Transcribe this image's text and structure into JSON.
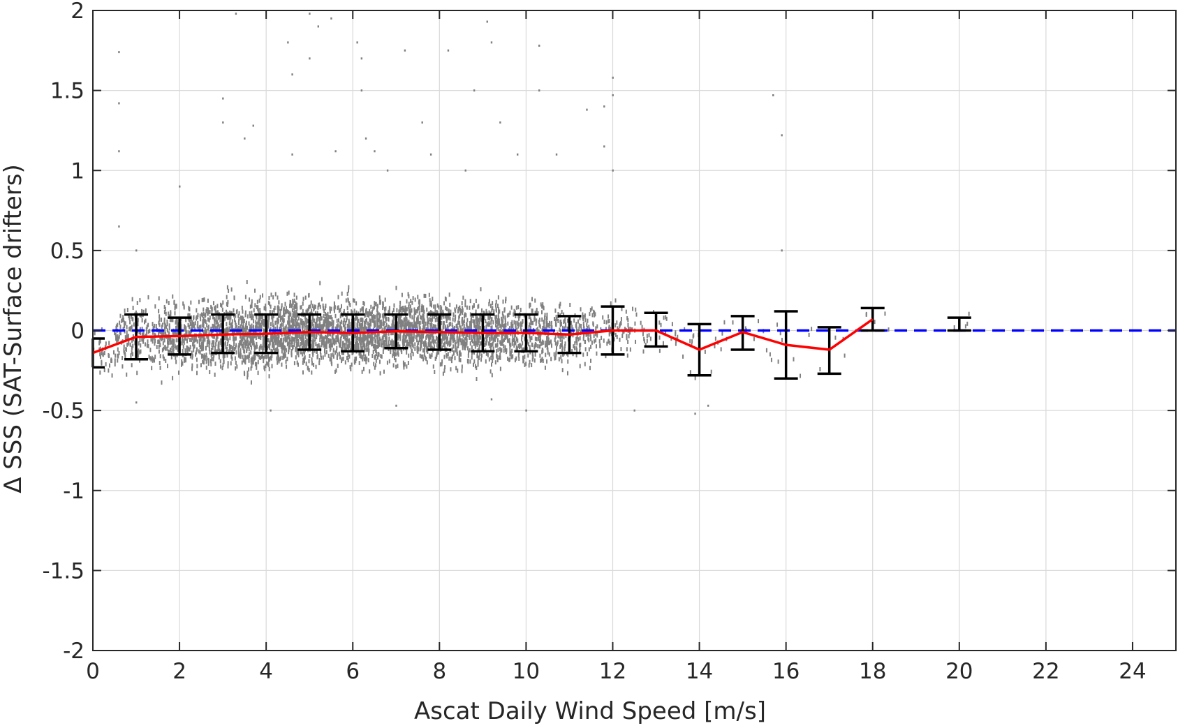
{
  "chart_data": {
    "type": "scatter",
    "xlabel": "Ascat Daily Wind Speed [m/s]",
    "ylabel": "Δ SSS (SAT-Surface drifters)",
    "xlim": [
      0,
      25
    ],
    "ylim": [
      -2,
      2
    ],
    "x_ticks": [
      0,
      2,
      4,
      6,
      8,
      10,
      12,
      14,
      16,
      18,
      20,
      22,
      24
    ],
    "y_ticks": [
      2,
      1.5,
      1,
      0.5,
      0,
      -0.5,
      -1,
      -1.5,
      -2
    ],
    "x_tick_labels": [
      "0",
      "2",
      "4",
      "6",
      "8",
      "10",
      "12",
      "14",
      "16",
      "18",
      "20",
      "22",
      "24"
    ],
    "y_tick_labels": [
      "2",
      "1.5",
      "1",
      "0.5",
      "0",
      "-0.5",
      "-1",
      "-1.5",
      "-2"
    ],
    "grid": true,
    "colors": {
      "scatter": "#808080",
      "mean_line": "#ff0000",
      "error_bars": "#000000",
      "zero_line": "#0000ff",
      "grid": "#d9d9d9",
      "axes": "#262626"
    },
    "zero_reference": {
      "y": 0,
      "style": "dashed"
    },
    "binned_mean": {
      "x": [
        0,
        1,
        2,
        3,
        4,
        5,
        6,
        7,
        8,
        9,
        10,
        11,
        12,
        13,
        14,
        15,
        16,
        17,
        18
      ],
      "y": [
        -0.14,
        -0.04,
        -0.035,
        -0.025,
        -0.02,
        -0.01,
        -0.015,
        -0.005,
        -0.01,
        -0.015,
        -0.015,
        -0.025,
        0.0,
        0.0,
        -0.12,
        -0.01,
        -0.09,
        -0.12,
        0.07
      ]
    },
    "error_bars": [
      {
        "x": 0,
        "mean": -0.14,
        "low": -0.23,
        "high": -0.05
      },
      {
        "x": 1,
        "mean": -0.04,
        "low": -0.18,
        "high": 0.1
      },
      {
        "x": 2,
        "mean": -0.035,
        "low": -0.15,
        "high": 0.08
      },
      {
        "x": 3,
        "mean": -0.025,
        "low": -0.14,
        "high": 0.1
      },
      {
        "x": 4,
        "mean": -0.02,
        "low": -0.14,
        "high": 0.1
      },
      {
        "x": 5,
        "mean": -0.01,
        "low": -0.12,
        "high": 0.1
      },
      {
        "x": 6,
        "mean": -0.015,
        "low": -0.13,
        "high": 0.1
      },
      {
        "x": 7,
        "mean": -0.005,
        "low": -0.11,
        "high": 0.1
      },
      {
        "x": 8,
        "mean": -0.01,
        "low": -0.12,
        "high": 0.1
      },
      {
        "x": 9,
        "mean": -0.015,
        "low": -0.13,
        "high": 0.1
      },
      {
        "x": 10,
        "mean": -0.015,
        "low": -0.13,
        "high": 0.1
      },
      {
        "x": 11,
        "mean": -0.025,
        "low": -0.14,
        "high": 0.09
      },
      {
        "x": 12,
        "mean": 0.0,
        "low": -0.15,
        "high": 0.15
      },
      {
        "x": 13,
        "mean": 0.0,
        "low": -0.1,
        "high": 0.11
      },
      {
        "x": 14,
        "mean": -0.12,
        "low": -0.28,
        "high": 0.04
      },
      {
        "x": 15,
        "mean": -0.01,
        "low": -0.12,
        "high": 0.09
      },
      {
        "x": 16,
        "mean": -0.09,
        "low": -0.3,
        "high": 0.12
      },
      {
        "x": 17,
        "mean": -0.12,
        "low": -0.27,
        "high": 0.02
      },
      {
        "x": 18,
        "mean": 0.07,
        "low": 0.0,
        "high": 0.14
      },
      {
        "x": 20,
        "mean": 0.04,
        "low": 0.0,
        "high": 0.08
      }
    ],
    "scatter_cloud": [
      {
        "x": 0,
        "sd": 0.07,
        "n": 60
      },
      {
        "x": 1,
        "sd": 0.1,
        "n": 180
      },
      {
        "x": 2,
        "sd": 0.1,
        "n": 320
      },
      {
        "x": 3,
        "sd": 0.1,
        "n": 420
      },
      {
        "x": 4,
        "sd": 0.11,
        "n": 480
      },
      {
        "x": 5,
        "sd": 0.1,
        "n": 500
      },
      {
        "x": 6,
        "sd": 0.1,
        "n": 500
      },
      {
        "x": 7,
        "sd": 0.1,
        "n": 480
      },
      {
        "x": 8,
        "sd": 0.1,
        "n": 440
      },
      {
        "x": 9,
        "sd": 0.1,
        "n": 380
      },
      {
        "x": 10,
        "sd": 0.1,
        "n": 300
      },
      {
        "x": 11,
        "sd": 0.09,
        "n": 200
      },
      {
        "x": 12,
        "sd": 0.08,
        "n": 90
      },
      {
        "x": 13,
        "sd": 0.07,
        "n": 35
      },
      {
        "x": 14,
        "sd": 0.1,
        "n": 15
      },
      {
        "x": 15,
        "sd": 0.07,
        "n": 10
      },
      {
        "x": 16,
        "sd": 0.1,
        "n": 10
      },
      {
        "x": 17,
        "sd": 0.08,
        "n": 6
      },
      {
        "x": 18,
        "sd": 0.05,
        "n": 5
      },
      {
        "x": 20,
        "sd": 0.03,
        "n": 4
      }
    ],
    "scatter_outliers": [
      [
        0.6,
        1.74
      ],
      [
        0.6,
        1.42
      ],
      [
        0.6,
        1.12
      ],
      [
        0.6,
        0.65
      ],
      [
        1.0,
        0.5
      ],
      [
        2.0,
        0.9
      ],
      [
        3.0,
        1.45
      ],
      [
        3.0,
        1.3
      ],
      [
        3.3,
        1.98
      ],
      [
        3.5,
        1.2
      ],
      [
        3.7,
        1.28
      ],
      [
        4.5,
        1.8
      ],
      [
        4.6,
        1.6
      ],
      [
        4.6,
        1.1
      ],
      [
        5.0,
        1.98
      ],
      [
        5.0,
        1.7
      ],
      [
        5.2,
        1.9
      ],
      [
        5.5,
        1.95
      ],
      [
        5.6,
        1.12
      ],
      [
        6.1,
        1.8
      ],
      [
        6.2,
        1.7
      ],
      [
        6.2,
        1.5
      ],
      [
        6.3,
        1.2
      ],
      [
        6.5,
        1.12
      ],
      [
        6.8,
        1.0
      ],
      [
        7.2,
        1.75
      ],
      [
        7.6,
        1.3
      ],
      [
        7.8,
        1.1
      ],
      [
        8.2,
        1.75
      ],
      [
        8.6,
        1.0
      ],
      [
        8.8,
        1.5
      ],
      [
        9.1,
        1.93
      ],
      [
        9.2,
        1.8
      ],
      [
        9.4,
        1.3
      ],
      [
        9.8,
        1.1
      ],
      [
        10.3,
        1.78
      ],
      [
        10.3,
        1.5
      ],
      [
        10.7,
        1.1
      ],
      [
        11.4,
        1.38
      ],
      [
        11.8,
        1.4
      ],
      [
        11.8,
        1.15
      ],
      [
        12.0,
        1.58
      ],
      [
        12.0,
        1.47
      ],
      [
        12.0,
        1.0
      ],
      [
        15.7,
        1.47
      ],
      [
        15.9,
        1.22
      ],
      [
        15.9,
        0.5
      ],
      [
        1.0,
        -0.45
      ],
      [
        4.1,
        -0.5
      ],
      [
        7.0,
        -0.47
      ],
      [
        10.0,
        -0.5
      ],
      [
        12.5,
        -0.5
      ],
      [
        13.9,
        -0.52
      ],
      [
        14.2,
        -0.47
      ],
      [
        9.2,
        -0.43
      ]
    ]
  }
}
